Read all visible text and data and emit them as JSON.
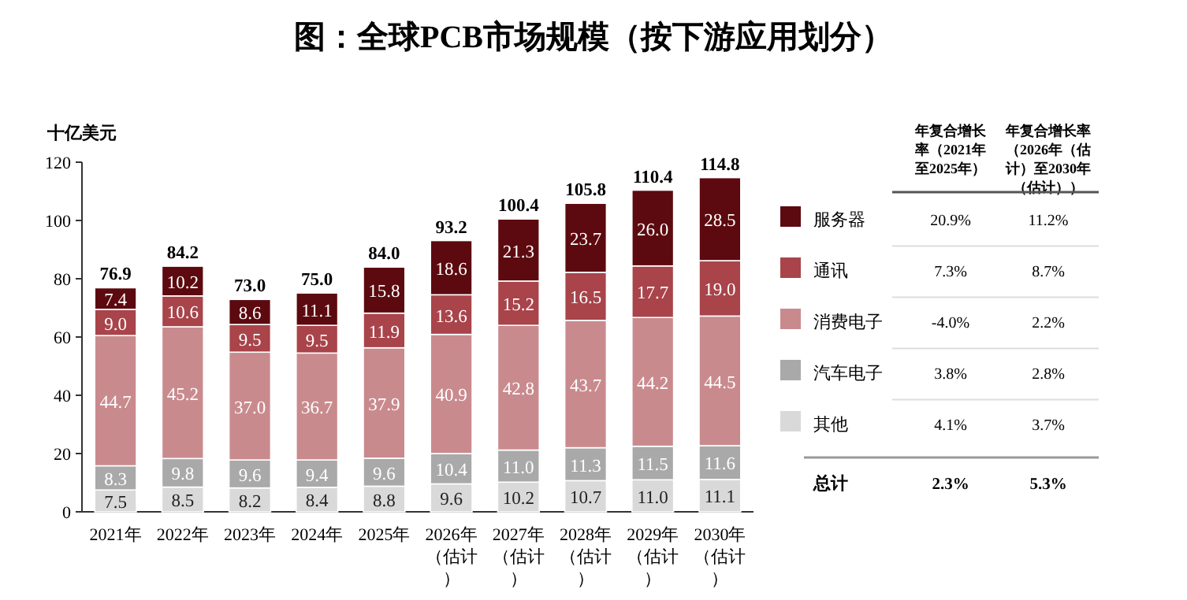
{
  "chart_data": {
    "type": "bar",
    "title": "图：全球PCB市场规模（按下游应用划分）",
    "ylabel": "十亿美元",
    "categories": [
      "2021年",
      "2022年",
      "2023年",
      "2024年",
      "2025年",
      "2026年（估计）",
      "2027年（估计）",
      "2028年（估计）",
      "2029年（估计）",
      "2030年（估计）"
    ],
    "stacked": true,
    "legend": "right",
    "grid": false,
    "ylim": [
      0,
      120
    ],
    "yticks": [
      0,
      20,
      40,
      60,
      80,
      100,
      120
    ],
    "series": [
      {
        "name": "其他",
        "color": "#d9d9d9",
        "values": [
          7.5,
          8.5,
          8.2,
          8.4,
          8.8,
          9.6,
          10.2,
          10.7,
          11.0,
          11.1
        ],
        "value_labels": [
          "7.5",
          "8.5",
          "8.2",
          "8.4",
          "8.8",
          "9.6",
          "10.2",
          "10.7",
          "11.0",
          "11.1"
        ]
      },
      {
        "name": "汽车电子",
        "color": "#a9a9a9",
        "values": [
          8.3,
          9.8,
          9.6,
          9.4,
          9.6,
          10.4,
          11.0,
          11.3,
          11.5,
          11.6
        ],
        "value_labels": [
          "8.3",
          "9.8",
          "9.6",
          "9.4",
          "9.6",
          "10.4",
          "11.0",
          "11.3",
          "11.5",
          "11.6"
        ]
      },
      {
        "name": "消费电子",
        "color": "#c98a8e",
        "values": [
          44.7,
          45.2,
          37.0,
          36.7,
          37.9,
          40.9,
          42.8,
          43.7,
          44.2,
          44.5
        ],
        "value_labels": [
          "44.7",
          "45.2",
          "37.0",
          "36.7",
          "37.9",
          "40.9",
          "42.8",
          "43.7",
          "44.2",
          "44.5"
        ]
      },
      {
        "name": "通讯",
        "color": "#a8444a",
        "values": [
          9.0,
          10.6,
          9.5,
          9.5,
          11.9,
          13.6,
          15.2,
          16.5,
          17.7,
          19.0
        ],
        "value_labels": [
          "9.0",
          "10.6",
          "9.5",
          "9.5",
          "11.9",
          "13.6",
          "15.2",
          "16.5",
          "17.7",
          "19.0"
        ]
      },
      {
        "name": "服务器",
        "color": "#5c0a0f",
        "values": [
          7.4,
          10.2,
          8.6,
          11.1,
          15.8,
          18.6,
          21.3,
          23.7,
          26.0,
          28.5
        ],
        "value_labels": [
          "7.4",
          "10.2",
          "8.6",
          "11.1",
          "15.8",
          "18.6",
          "21.3",
          "23.7",
          "26.0",
          "28.5"
        ]
      }
    ],
    "totals": [
      "76.9",
      "84.2",
      "73.0",
      "75.0",
      "84.0",
      "93.2",
      "100.4",
      "105.8",
      "110.4",
      "114.8"
    ],
    "annotations": [
      "年复合增长率（2021年至2025年）",
      "年复合增长率（2026年（估计）至2030年（估计））",
      "20.9%",
      "11.2%",
      "7.3%",
      "8.7%",
      "-4.0%",
      "2.2%",
      "3.8%",
      "2.8%",
      "4.1%",
      "3.7%",
      "总计",
      "2.3%",
      "5.3%"
    ]
  }
}
